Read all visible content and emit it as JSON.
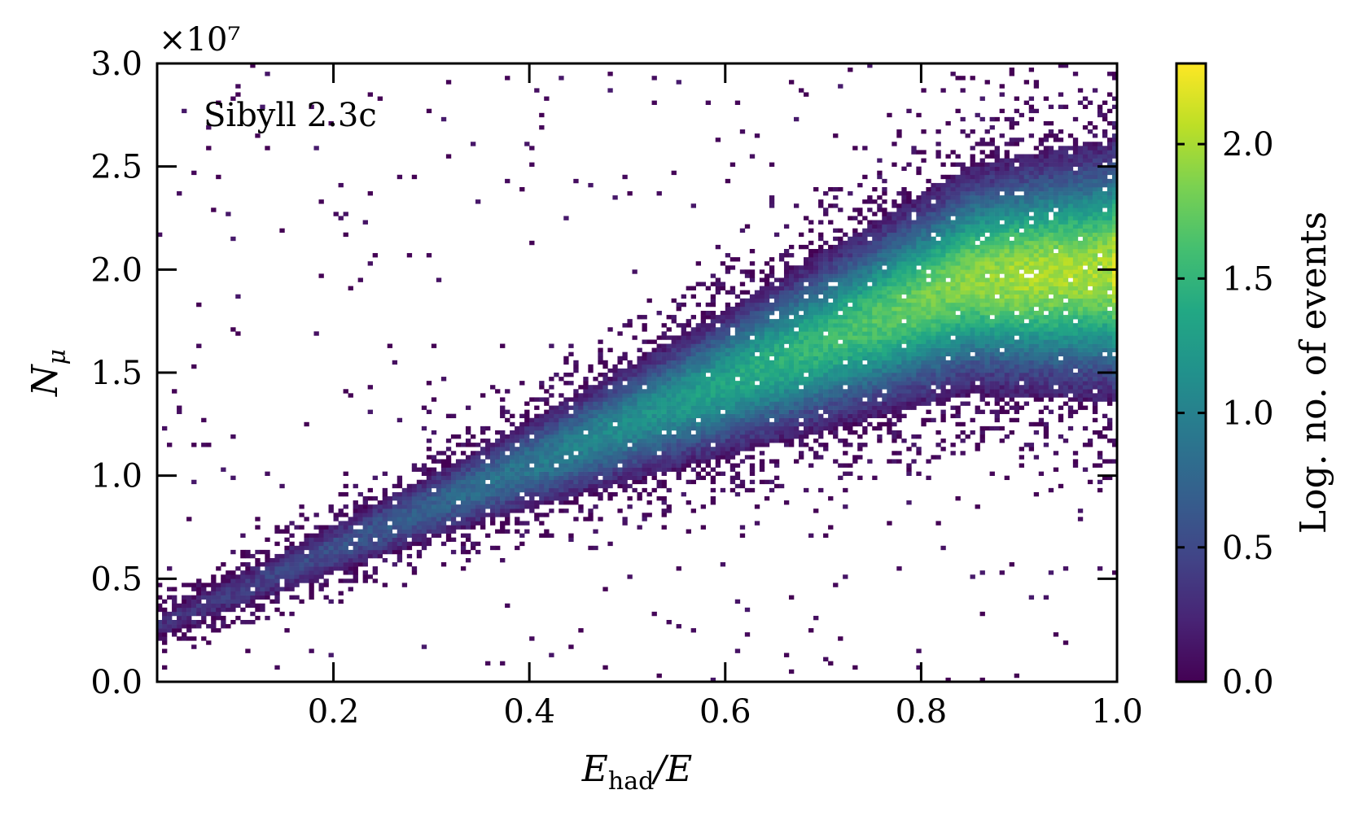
{
  "chart_data": {
    "type": "heatmap",
    "annotation": "Sibyll 2.3c",
    "xlabel": {
      "main": "E",
      "sub": "had",
      "tail": "/E"
    },
    "ylabel": {
      "main": "N",
      "sub": "μ"
    },
    "y_offset_text": "×10⁷",
    "xlim": [
      0.02,
      1.0
    ],
    "ylim": [
      0.0,
      30000000
    ],
    "x_ticks": [
      0.2,
      0.4,
      0.6,
      0.8,
      1.0
    ],
    "x_tick_labels": [
      "0.2",
      "0.4",
      "0.6",
      "0.8",
      "1.0"
    ],
    "y_ticks": [
      0,
      5000000,
      10000000,
      15000000,
      20000000,
      25000000,
      30000000
    ],
    "y_tick_labels": [
      "0.0",
      "0.5",
      "1.0",
      "1.5",
      "2.0",
      "2.5",
      "3.0"
    ],
    "colorbar": {
      "label": "Log. no. of events",
      "range": [
        0.0,
        2.3
      ],
      "ticks": [
        0.0,
        0.5,
        1.0,
        1.5,
        2.0
      ],
      "tick_labels": [
        "0.0",
        "0.5",
        "1.0",
        "1.5",
        "2.0"
      ],
      "colormap": "viridis"
    },
    "density_model": {
      "description": "approximate 2D histogram of log10(count) per bin",
      "ridge_points": [
        [
          0.02,
          2700000
        ],
        [
          0.3,
          8500000
        ],
        [
          0.5,
          12500000
        ],
        [
          0.7,
          16500000
        ],
        [
          0.85,
          19500000
        ],
        [
          1.0,
          20000000
        ]
      ],
      "ridge_spread_points": [
        [
          0.02,
          500000
        ],
        [
          0.3,
          1000000
        ],
        [
          0.5,
          1600000
        ],
        [
          0.7,
          2300000
        ],
        [
          0.85,
          2800000
        ],
        [
          1.0,
          3200000
        ]
      ],
      "peak_log_count": 2.0,
      "peak_x": 0.9,
      "edge_column_x": 1.0,
      "edge_column_log_count": 2.2
    }
  }
}
